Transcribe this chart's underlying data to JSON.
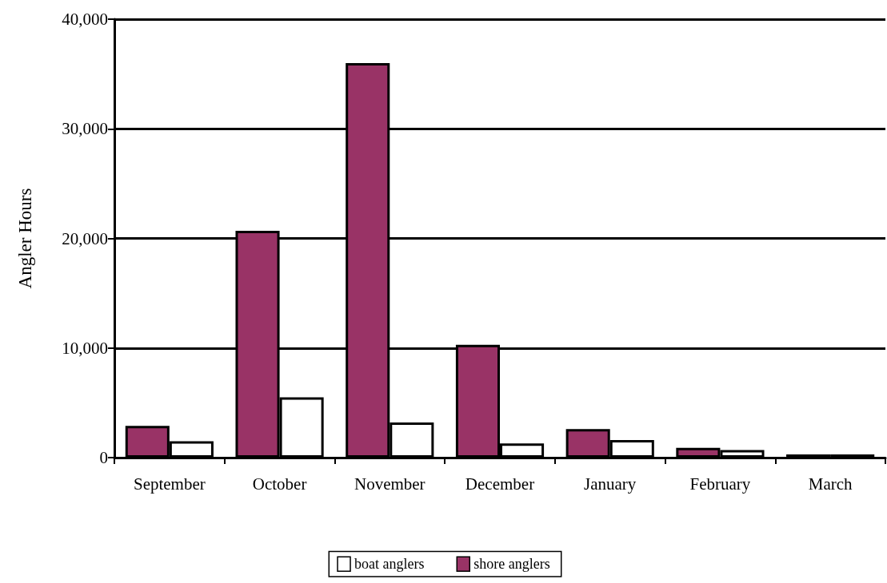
{
  "chart_data": {
    "type": "bar",
    "ylabel": "Angler Hours",
    "categories": [
      "September",
      "October",
      "November",
      "December",
      "January",
      "February",
      "March"
    ],
    "series": [
      {
        "name": "shore anglers",
        "color": "#993366",
        "values": [
          2900,
          20700,
          36000,
          10300,
          2600,
          900,
          300
        ]
      },
      {
        "name": "boat anglers",
        "color": "#ffffff",
        "values": [
          1500,
          5500,
          3200,
          1300,
          1600,
          700,
          300
        ]
      }
    ],
    "ylim": [
      0,
      40000
    ],
    "yticks": [
      {
        "value": 0,
        "label": "0"
      },
      {
        "value": 10000,
        "label": "10,000"
      },
      {
        "value": 20000,
        "label": "20,000"
      },
      {
        "value": 30000,
        "label": "30,000"
      },
      {
        "value": 40000,
        "label": "40,000"
      }
    ],
    "grid": "y",
    "legend": "bottom"
  }
}
